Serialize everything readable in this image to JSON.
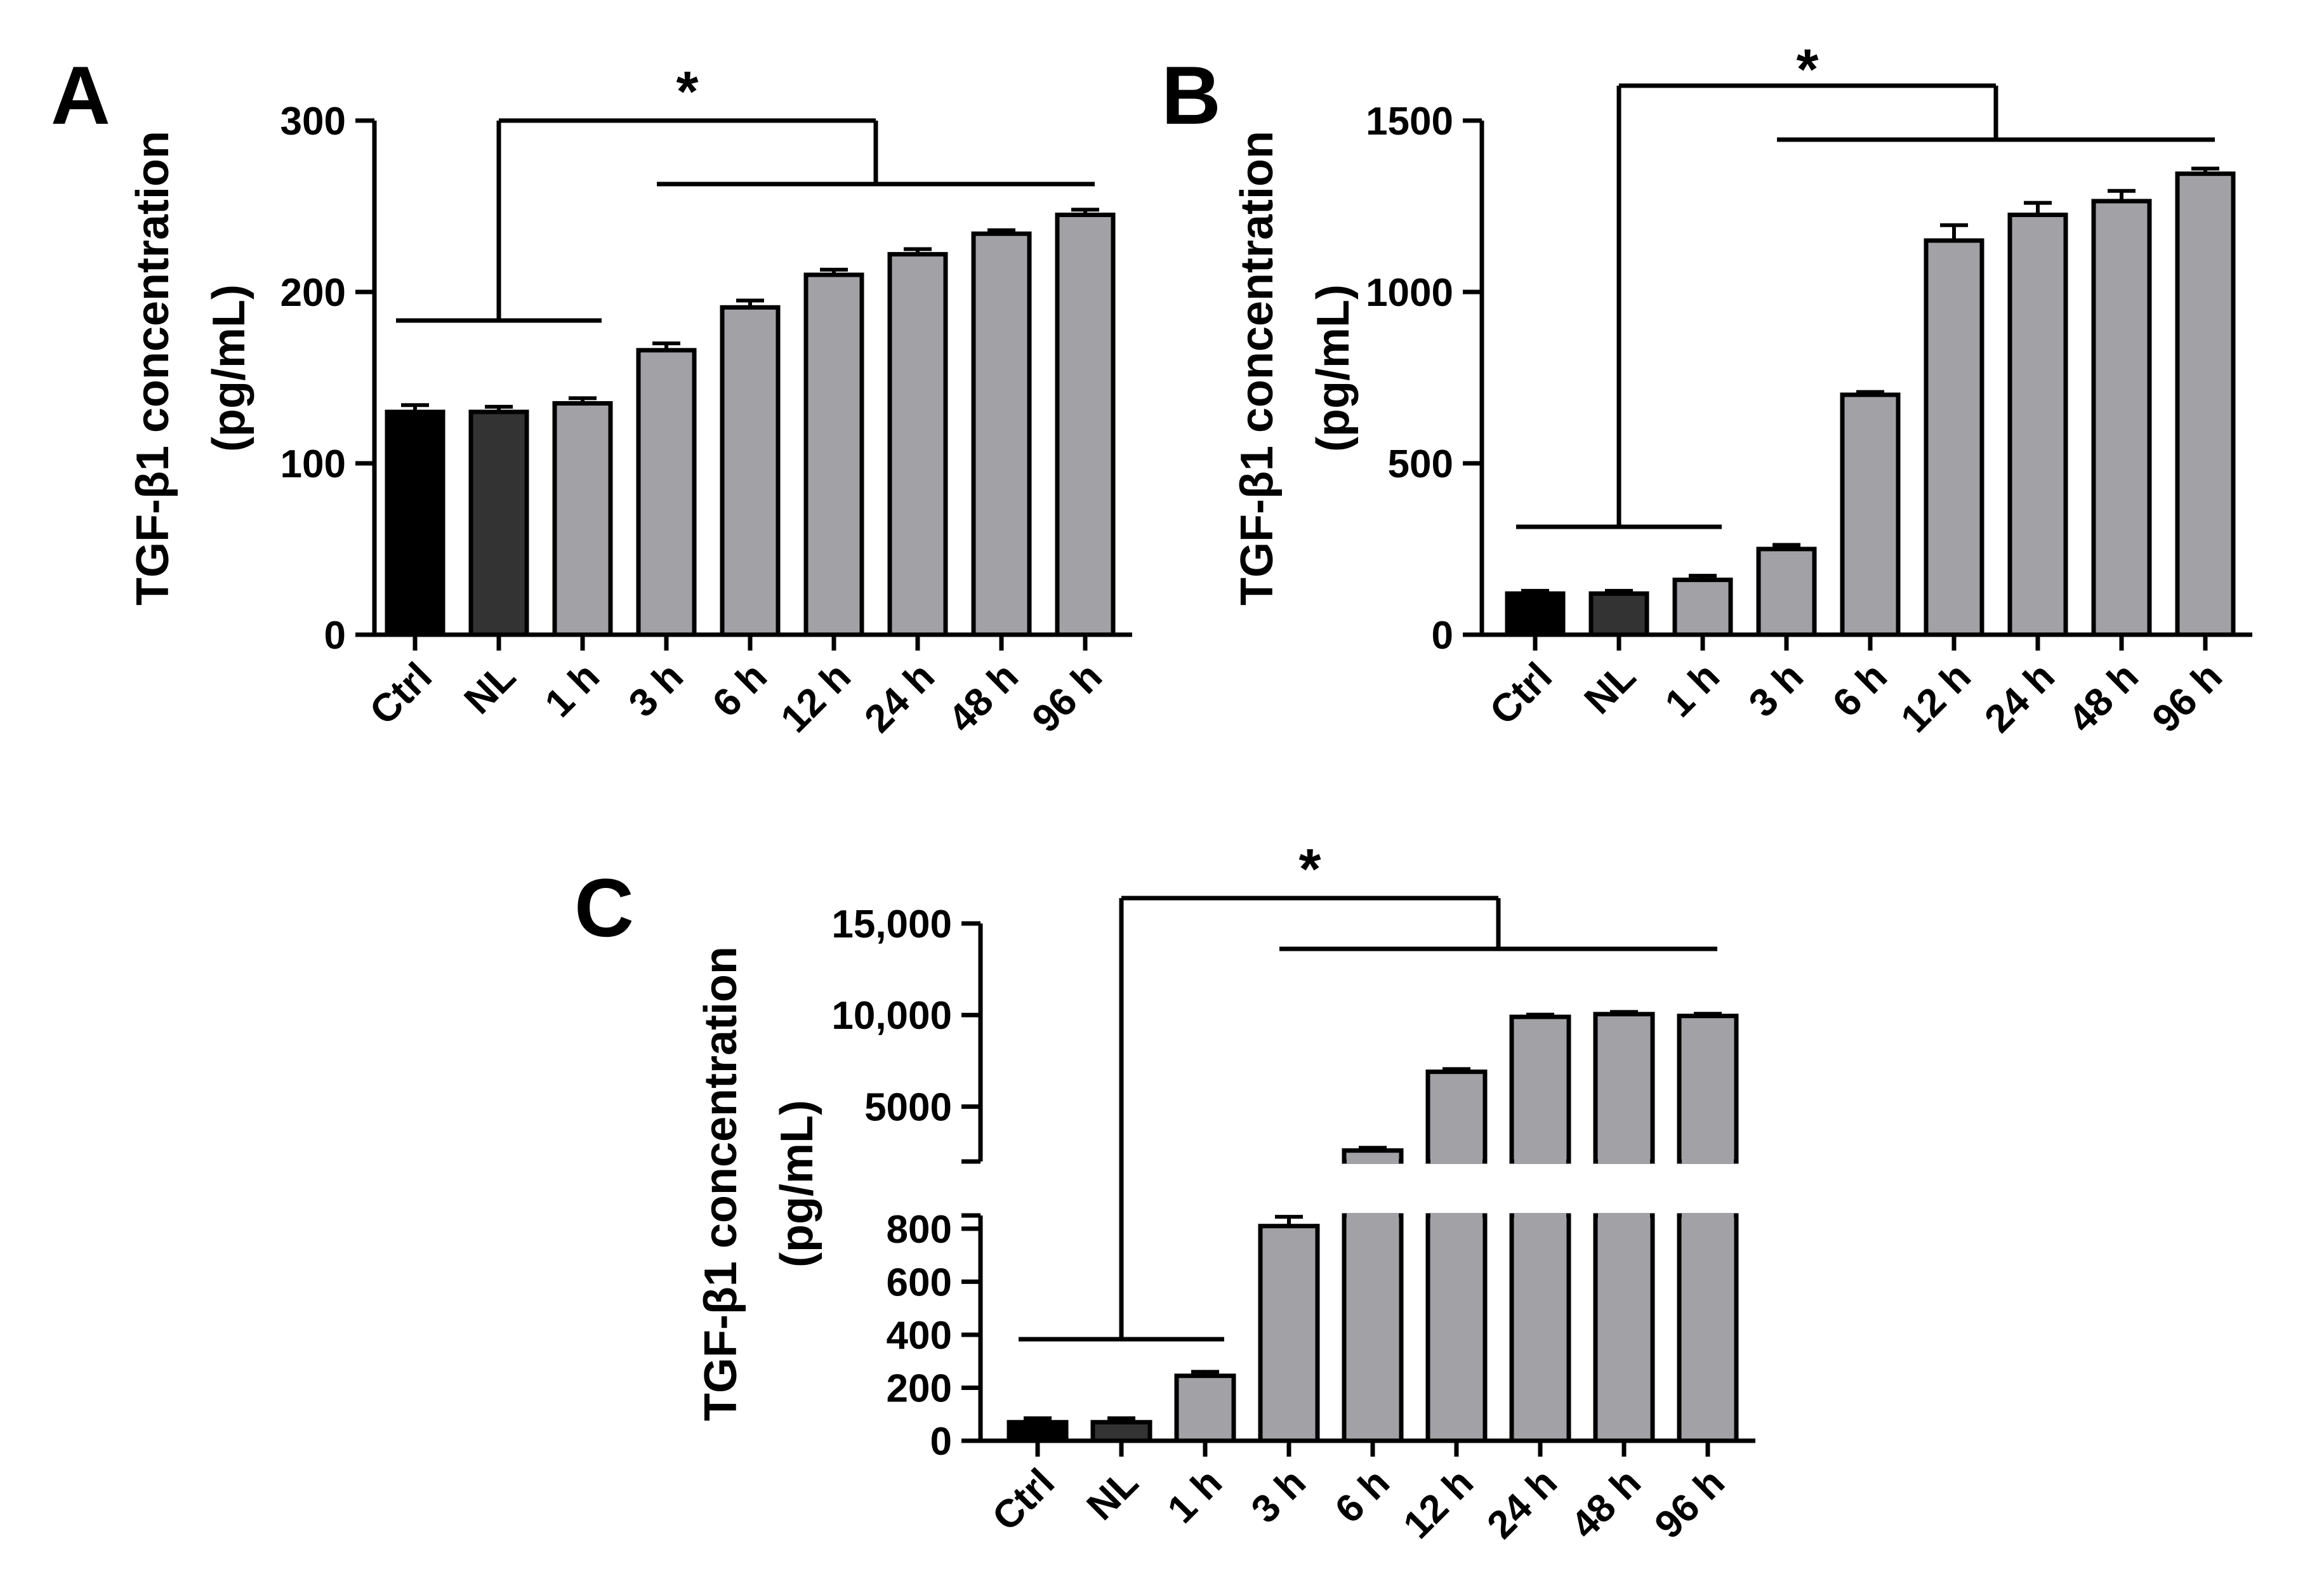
{
  "figure": {
    "type": "multi-panel bar chart"
  },
  "chart_data": [
    {
      "panel": "A",
      "type": "bar",
      "ylabel_line1": "TGF-β1 concentration",
      "ylabel_line2": "(pg/mL)",
      "categories": [
        "Ctrl",
        "NL",
        "1 h",
        "3 h",
        "6 h",
        "12 h",
        "24 h",
        "48 h",
        "96 h"
      ],
      "values": [
        130,
        130,
        135,
        166,
        191,
        210,
        222,
        234,
        245
      ],
      "errors": [
        4,
        3,
        3,
        4,
        4,
        3,
        3,
        2,
        3
      ],
      "colors": [
        "#000000",
        "#333333",
        "#a2a2a6",
        "#a2a2a6",
        "#a2a2a6",
        "#a2a2a6",
        "#a2a2a6",
        "#a2a2a6",
        "#a2a2a6"
      ],
      "ylim": [
        0,
        300
      ],
      "yticks": [
        0,
        100,
        200,
        300
      ],
      "ytick_labels": [
        "0",
        "100",
        "200",
        "300"
      ],
      "significance": {
        "label": "*",
        "group1": [
          "Ctrl",
          "NL",
          "1 h"
        ],
        "group2": [
          "3 h",
          "6 h",
          "12 h",
          "24 h",
          "48 h",
          "96 h"
        ]
      }
    },
    {
      "panel": "B",
      "type": "bar",
      "ylabel_line1": "TGF-β1 concentration",
      "ylabel_line2": "(pg/mL)",
      "categories": [
        "Ctrl",
        "NL",
        "1 h",
        "3 h",
        "6 h",
        "12 h",
        "24 h",
        "48 h",
        "96 h"
      ],
      "values": [
        120,
        120,
        160,
        250,
        700,
        1150,
        1225,
        1265,
        1345
      ],
      "errors": [
        8,
        8,
        12,
        12,
        8,
        45,
        35,
        30,
        15
      ],
      "colors": [
        "#000000",
        "#333333",
        "#a2a2a6",
        "#a2a2a6",
        "#a2a2a6",
        "#a2a2a6",
        "#a2a2a6",
        "#a2a2a6",
        "#a2a2a6"
      ],
      "ylim": [
        0,
        1500
      ],
      "yticks": [
        0,
        500,
        1000,
        1500
      ],
      "ytick_labels": [
        "0",
        "500",
        "1000",
        "1500"
      ],
      "significance": {
        "label": "*",
        "group1": [
          "Ctrl",
          "NL",
          "1 h"
        ],
        "group2": [
          "3 h",
          "6 h",
          "12 h",
          "24 h",
          "48 h",
          "96 h"
        ]
      }
    },
    {
      "panel": "C",
      "type": "bar",
      "axis_break": true,
      "ylabel_line1": "TGF-β1 concentration",
      "ylabel_line2": "(pg/mL)",
      "categories": [
        "Ctrl",
        "NL",
        "1 h",
        "3 h",
        "6 h",
        "12 h",
        "24 h",
        "48 h",
        "96 h"
      ],
      "values": [
        70,
        70,
        245,
        810,
        2600,
        6900,
        9900,
        10050,
        9950
      ],
      "errors": [
        15,
        15,
        15,
        35,
        150,
        150,
        120,
        120,
        120
      ],
      "colors": [
        "#000000",
        "#333333",
        "#a2a2a6",
        "#a2a2a6",
        "#a2a2a6",
        "#a2a2a6",
        "#a2a2a6",
        "#a2a2a6",
        "#a2a2a6"
      ],
      "lower_ylim": [
        0,
        850
      ],
      "lower_yticks": [
        0,
        200,
        400,
        600,
        800
      ],
      "lower_ytick_labels": [
        "0",
        "200",
        "400",
        "600",
        "800"
      ],
      "upper_ylim": [
        2000,
        15000
      ],
      "upper_yticks": [
        5000,
        10000,
        15000
      ],
      "upper_ytick_labels": [
        "5000",
        "10,000",
        "15,000"
      ],
      "significance": {
        "label": "*",
        "group1": [
          "Ctrl",
          "NL",
          "1 h"
        ],
        "group2": [
          "3 h",
          "6 h",
          "12 h",
          "24 h",
          "48 h",
          "96 h"
        ]
      }
    }
  ]
}
